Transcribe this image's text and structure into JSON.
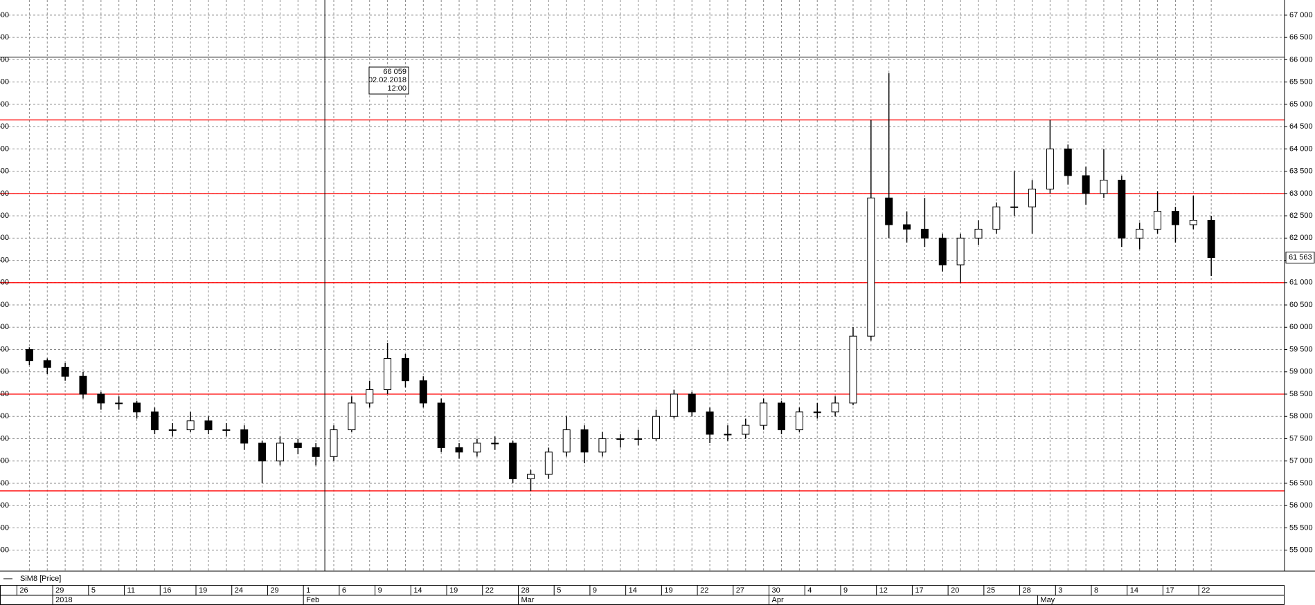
{
  "chart_data": {
    "type": "candlestick",
    "legend": "SiM8 [Price]",
    "up_color": "#ffffff",
    "down_color": "#000000",
    "level_color": "#ff0000",
    "grid": true,
    "ylim": [
      54530,
      67340
    ],
    "yticks": [
      {
        "value": 55000,
        "label": "55 000"
      },
      {
        "value": 55500,
        "label": "55 500"
      },
      {
        "value": 56000,
        "label": "56 000"
      },
      {
        "value": 56500,
        "label": "56 500"
      },
      {
        "value": 57000,
        "label": "57 000"
      },
      {
        "value": 57500,
        "label": "57 500"
      },
      {
        "value": 58000,
        "label": "58 000"
      },
      {
        "value": 58500,
        "label": "58 500"
      },
      {
        "value": 59000,
        "label": "59 000"
      },
      {
        "value": 59500,
        "label": "59 500"
      },
      {
        "value": 60000,
        "label": "60 000"
      },
      {
        "value": 60500,
        "label": "60 500"
      },
      {
        "value": 61000,
        "label": "61 000"
      },
      {
        "value": 61500,
        "label": "61 500"
      },
      {
        "value": 62000,
        "label": "62 000"
      },
      {
        "value": 62500,
        "label": "62 500"
      },
      {
        "value": 63000,
        "label": "63 000"
      },
      {
        "value": 63500,
        "label": "63 500"
      },
      {
        "value": 64000,
        "label": "64 000"
      },
      {
        "value": 64500,
        "label": "64 500"
      },
      {
        "value": 65000,
        "label": "65 000"
      },
      {
        "value": 65500,
        "label": "65 500"
      },
      {
        "value": 66000,
        "label": "66 000"
      },
      {
        "value": 66500,
        "label": "66 500"
      },
      {
        "value": 67000,
        "label": "67 000"
      }
    ],
    "categories": [
      "26",
      null,
      "29",
      null,
      "5",
      null,
      "11",
      null,
      "16",
      null,
      "19",
      null,
      "24",
      null,
      "29",
      null,
      "1",
      null,
      "6",
      null,
      "9",
      null,
      "14",
      null,
      "19",
      null,
      "22",
      null,
      "28",
      null,
      "5",
      null,
      "9",
      null,
      "14",
      null,
      "19",
      null,
      "22",
      null,
      "27",
      null,
      "30",
      null,
      "4",
      null,
      "9",
      null,
      "12",
      null,
      "17",
      null,
      "20",
      null,
      "25",
      null,
      "28",
      null,
      "3",
      null,
      "8",
      null,
      "14",
      null,
      "17",
      null,
      "22"
    ],
    "months": [
      {
        "index": 2,
        "label": "2018"
      },
      {
        "index": 16,
        "label": "Feb"
      },
      {
        "index": 28,
        "label": "Mar"
      },
      {
        "index": 42,
        "label": "Apr"
      },
      {
        "index": 57,
        "label": "May"
      }
    ],
    "open": [
      59500,
      59250,
      59100,
      58900,
      58500,
      58300,
      58300,
      58100,
      57700,
      57700,
      57900,
      57700,
      57700,
      57400,
      57000,
      57400,
      57300,
      57100,
      57700,
      58300,
      58600,
      59300,
      58800,
      58300,
      57300,
      57200,
      57400,
      57400,
      56600,
      56700,
      57200,
      57700,
      57200,
      57500,
      57500,
      57500,
      58000,
      58500,
      58100,
      57600,
      57600,
      57800,
      58300,
      57700,
      58100,
      58100,
      58300,
      59800,
      62900,
      62300,
      62200,
      62000,
      61400,
      62000,
      62200,
      62700,
      62700,
      63100,
      64000,
      63400,
      63000,
      63300,
      62000,
      62200,
      62600,
      62300,
      62400
    ],
    "high": [
      59550,
      59300,
      59200,
      59000,
      58550,
      58450,
      58350,
      58200,
      57850,
      58100,
      58000,
      57850,
      57800,
      57450,
      57550,
      57500,
      57400,
      57800,
      58450,
      58800,
      59650,
      59400,
      58900,
      58400,
      57400,
      57500,
      57550,
      57450,
      56800,
      57300,
      58000,
      57800,
      57650,
      57600,
      57700,
      58150,
      58600,
      58550,
      58200,
      57800,
      57950,
      58400,
      58350,
      58200,
      58300,
      58450,
      60000,
      64650,
      65700,
      62600,
      62900,
      62100,
      62100,
      62400,
      62800,
      63500,
      63300,
      64650,
      64100,
      63600,
      64000,
      63400,
      62350,
      63050,
      62700,
      62950,
      62500
    ],
    "low": [
      59150,
      58950,
      58800,
      58400,
      58150,
      58150,
      57950,
      57600,
      57550,
      57650,
      57600,
      57550,
      57250,
      56500,
      56900,
      57150,
      56900,
      57000,
      57650,
      58200,
      58500,
      58650,
      58200,
      57200,
      57050,
      57100,
      57250,
      56500,
      56330,
      56600,
      57100,
      56950,
      57100,
      57300,
      57350,
      57450,
      57950,
      58000,
      57400,
      57450,
      57500,
      57700,
      57600,
      57650,
      57950,
      58000,
      58250,
      59700,
      62000,
      61900,
      61800,
      61250,
      61000,
      61850,
      62100,
      62500,
      62100,
      63000,
      63200,
      62750,
      62900,
      61800,
      61750,
      62100,
      61900,
      62200,
      61150
    ],
    "close": [
      59250,
      59100,
      58900,
      58500,
      58300,
      58300,
      58100,
      57700,
      57700,
      57900,
      57700,
      57700,
      57400,
      57000,
      57400,
      57300,
      57100,
      57700,
      58300,
      58600,
      59300,
      58800,
      58300,
      57300,
      57200,
      57400,
      57400,
      56600,
      56700,
      57200,
      57700,
      57200,
      57500,
      57500,
      57500,
      58000,
      58500,
      58100,
      57600,
      57600,
      57800,
      58300,
      57700,
      58100,
      58100,
      58300,
      59800,
      62900,
      62300,
      62200,
      62000,
      61400,
      62000,
      62200,
      62700,
      62700,
      63100,
      64000,
      63400,
      63000,
      63300,
      62000,
      62200,
      62600,
      62300,
      62400,
      61563
    ],
    "last_price": {
      "value": 61563,
      "label": "61 563"
    },
    "levels": [
      64650,
      63000,
      61000,
      58500,
      56330
    ],
    "crosshair": {
      "value": 66059,
      "label": "66 059",
      "date": "02.02.2018",
      "time": "12:00"
    }
  }
}
